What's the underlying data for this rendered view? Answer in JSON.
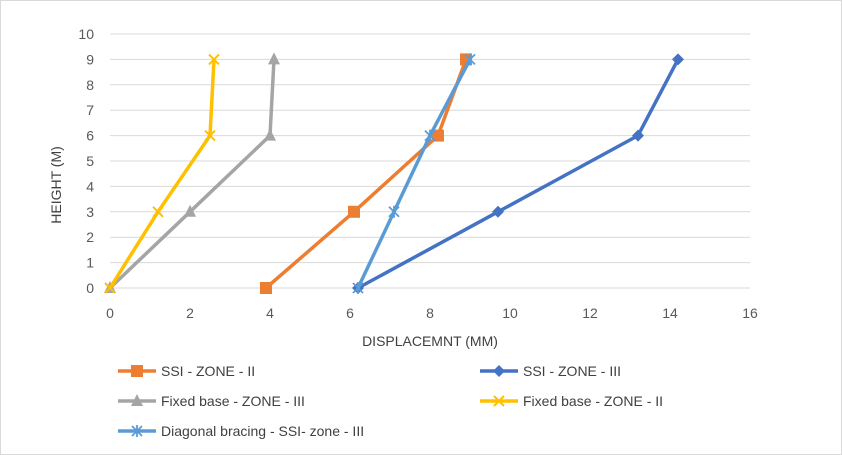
{
  "chart_data": {
    "type": "line",
    "title": "",
    "xlabel": "DISPLACEMNT (MM)",
    "ylabel": "HEIGHT (M)",
    "xlim": [
      0,
      16
    ],
    "ylim": [
      0,
      10
    ],
    "xticks": [
      "0",
      "2",
      "4",
      "6",
      "8",
      "10",
      "12",
      "14",
      "16"
    ],
    "yticks": [
      "0",
      "1",
      "2",
      "3",
      "4",
      "5",
      "6",
      "7",
      "8",
      "9",
      "10"
    ],
    "grid": "horizontal",
    "legend_position": "bottom",
    "series": [
      {
        "name": "SSI - ZONE - II",
        "color": "#ED7D31",
        "marker": "square",
        "points": [
          [
            3.9,
            0
          ],
          [
            6.1,
            3
          ],
          [
            8.2,
            6
          ],
          [
            8.9,
            9
          ]
        ]
      },
      {
        "name": "SSI - ZONE - III",
        "color": "#4472C4",
        "marker": "diamond",
        "points": [
          [
            6.2,
            0
          ],
          [
            9.7,
            3
          ],
          [
            13.2,
            6
          ],
          [
            14.2,
            9
          ]
        ]
      },
      {
        "name": "Fixed base - ZONE - III",
        "color": "#A5A5A5",
        "marker": "triangle",
        "points": [
          [
            0,
            0
          ],
          [
            2.0,
            3
          ],
          [
            4.0,
            6
          ],
          [
            4.1,
            9
          ]
        ]
      },
      {
        "name": "Fixed base - ZONE - II",
        "color": "#FFC000",
        "marker": "x",
        "points": [
          [
            0,
            0
          ],
          [
            1.2,
            3
          ],
          [
            2.5,
            6
          ],
          [
            2.6,
            9
          ]
        ]
      },
      {
        "name": "Diagonal bracing - SSI- zone - III",
        "color": "#5B9BD5",
        "marker": "star",
        "points": [
          [
            6.2,
            0
          ],
          [
            7.1,
            3
          ],
          [
            8.0,
            6
          ],
          [
            9.0,
            9
          ]
        ]
      }
    ]
  }
}
